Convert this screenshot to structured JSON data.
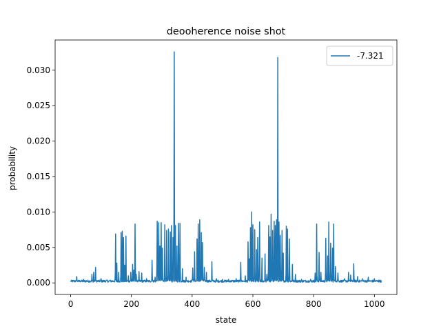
{
  "chart_data": {
    "type": "line",
    "title": "deooherence noise shot",
    "xlabel": "state",
    "ylabel": "probability",
    "xlim": [
      -51.15,
      1074.15
    ],
    "ylim": [
      -0.00163,
      0.03426
    ],
    "xticks": [
      0,
      200,
      400,
      600,
      800,
      1000
    ],
    "xtick_labels": [
      "0",
      "200",
      "400",
      "600",
      "800",
      "1000"
    ],
    "yticks": [
      0.0,
      0.005,
      0.01,
      0.015,
      0.02,
      0.025,
      0.03
    ],
    "ytick_labels": [
      "0.000",
      "0.005",
      "0.010",
      "0.015",
      "0.020",
      "0.025",
      "0.030"
    ],
    "grid": false,
    "legend": {
      "position": "top-right"
    },
    "series": [
      {
        "name": "-7.321",
        "color": "#1f77b4",
        "x_range": [
          0,
          1023
        ],
        "baseline": 0.0001,
        "peaks": [
          [
            20,
            0.0009
          ],
          [
            42,
            0.0005
          ],
          [
            70,
            0.0012
          ],
          [
            76,
            0.0015
          ],
          [
            82,
            0.0022
          ],
          [
            100,
            0.0006
          ],
          [
            120,
            0.0004
          ],
          [
            148,
            0.0069
          ],
          [
            152,
            0.0028
          ],
          [
            158,
            0.0015
          ],
          [
            166,
            0.0071
          ],
          [
            170,
            0.0073
          ],
          [
            174,
            0.0064
          ],
          [
            178,
            0.0025
          ],
          [
            182,
            0.0066
          ],
          [
            190,
            0.001
          ],
          [
            198,
            0.0015
          ],
          [
            204,
            0.0026
          ],
          [
            208,
            0.0018
          ],
          [
            212,
            0.0083
          ],
          [
            216,
            0.0012
          ],
          [
            225,
            0.0016
          ],
          [
            234,
            0.0014
          ],
          [
            250,
            0.0006
          ],
          [
            268,
            0.0032
          ],
          [
            278,
            0.0008
          ],
          [
            285,
            0.0087
          ],
          [
            290,
            0.0085
          ],
          [
            294,
            0.0052
          ],
          [
            298,
            0.0085
          ],
          [
            302,
            0.0049
          ],
          [
            310,
            0.0082
          ],
          [
            316,
            0.0074
          ],
          [
            322,
            0.0076
          ],
          [
            328,
            0.0072
          ],
          [
            332,
            0.0081
          ],
          [
            337,
            0.0064
          ],
          [
            341,
            0.0326
          ],
          [
            345,
            0.0081
          ],
          [
            350,
            0.0052
          ],
          [
            355,
            0.0084
          ],
          [
            360,
            0.0084
          ],
          [
            368,
            0.002
          ],
          [
            380,
            0.0008
          ],
          [
            402,
            0.0021
          ],
          [
            408,
            0.0044
          ],
          [
            416,
            0.0062
          ],
          [
            420,
            0.0083
          ],
          [
            425,
            0.0089
          ],
          [
            430,
            0.0071
          ],
          [
            434,
            0.0057
          ],
          [
            440,
            0.0022
          ],
          [
            447,
            0.0015
          ],
          [
            465,
            0.003
          ],
          [
            480,
            0.0006
          ],
          [
            500,
            0.0005
          ],
          [
            520,
            0.0005
          ],
          [
            545,
            0.0006
          ],
          [
            560,
            0.0029
          ],
          [
            575,
            0.001
          ],
          [
            584,
            0.0058
          ],
          [
            588,
            0.0034
          ],
          [
            592,
            0.0078
          ],
          [
            596,
            0.01
          ],
          [
            600,
            0.0082
          ],
          [
            606,
            0.0075
          ],
          [
            612,
            0.0047
          ],
          [
            616,
            0.0064
          ],
          [
            622,
            0.0086
          ],
          [
            630,
            0.0035
          ],
          [
            640,
            0.0041
          ],
          [
            646,
            0.0012
          ],
          [
            652,
            0.0081
          ],
          [
            656,
            0.0065
          ],
          [
            660,
            0.0097
          ],
          [
            665,
            0.0074
          ],
          [
            670,
            0.0087
          ],
          [
            674,
            0.0081
          ],
          [
            678,
            0.0089
          ],
          [
            682,
            0.0318
          ],
          [
            686,
            0.0086
          ],
          [
            690,
            0.0067
          ],
          [
            696,
            0.0074
          ],
          [
            700,
            0.0042
          ],
          [
            710,
            0.008
          ],
          [
            714,
            0.0076
          ],
          [
            720,
            0.0062
          ],
          [
            730,
            0.0026
          ],
          [
            740,
            0.0012
          ],
          [
            760,
            0.0005
          ],
          [
            790,
            0.0005
          ],
          [
            805,
            0.0014
          ],
          [
            810,
            0.0083
          ],
          [
            818,
            0.0043
          ],
          [
            824,
            0.0015
          ],
          [
            840,
            0.0063
          ],
          [
            846,
            0.0038
          ],
          [
            850,
            0.0086
          ],
          [
            856,
            0.0056
          ],
          [
            862,
            0.0049
          ],
          [
            866,
            0.0083
          ],
          [
            872,
            0.0023
          ],
          [
            880,
            0.0014
          ],
          [
            902,
            0.0006
          ],
          [
            915,
            0.0015
          ],
          [
            922,
            0.0011
          ],
          [
            932,
            0.0027
          ],
          [
            945,
            0.0009
          ],
          [
            960,
            0.0006
          ],
          [
            980,
            0.0008
          ],
          [
            1000,
            0.0006
          ],
          [
            1015,
            0.0004
          ]
        ]
      }
    ]
  }
}
